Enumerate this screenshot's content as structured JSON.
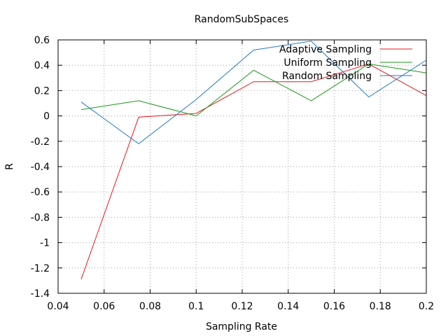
{
  "chart_data": {
    "type": "line",
    "title": "RandomSubSpaces",
    "xlabel": "Sampling Rate",
    "ylabel": "R",
    "xlim": [
      0.04,
      0.2
    ],
    "ylim": [
      -1.4,
      0.6
    ],
    "xticks": [
      0.04,
      0.06,
      0.08,
      0.1,
      0.12,
      0.14,
      0.16,
      0.18,
      0.2
    ],
    "xtick_labels": [
      "0.04",
      "0.06",
      "0.08",
      "0.1",
      "0.12",
      "0.14",
      "0.16",
      "0.18",
      "0.2"
    ],
    "yticks": [
      0.6,
      0.4,
      0.2,
      0,
      -0.2,
      -0.4,
      -0.6,
      -0.8,
      -1,
      -1.2,
      -1.4
    ],
    "ytick_labels": [
      "0.6",
      "0.4",
      "0.2",
      "0",
      "-0.2",
      "-0.4",
      "-0.6",
      "-0.8",
      "-1",
      "-1.2",
      "-1.4"
    ],
    "grid": true,
    "legend_position": "top-right",
    "x": [
      0.05,
      0.075,
      0.1,
      0.125,
      0.15,
      0.175,
      0.2
    ],
    "series": [
      {
        "name": "Adaptive Sampling",
        "color": "#e41a1c",
        "values": [
          -1.29,
          -0.01,
          0.02,
          0.27,
          0.27,
          0.41,
          0.16
        ]
      },
      {
        "name": "Uniform Sampling",
        "color": "#1a9a1a",
        "values": [
          0.05,
          0.12,
          0.0,
          0.36,
          0.12,
          0.41,
          0.34
        ]
      },
      {
        "name": "Random Sampling",
        "color": "#1f78c8",
        "values": [
          0.11,
          -0.22,
          0.13,
          0.52,
          0.59,
          0.15,
          0.44
        ]
      }
    ]
  }
}
